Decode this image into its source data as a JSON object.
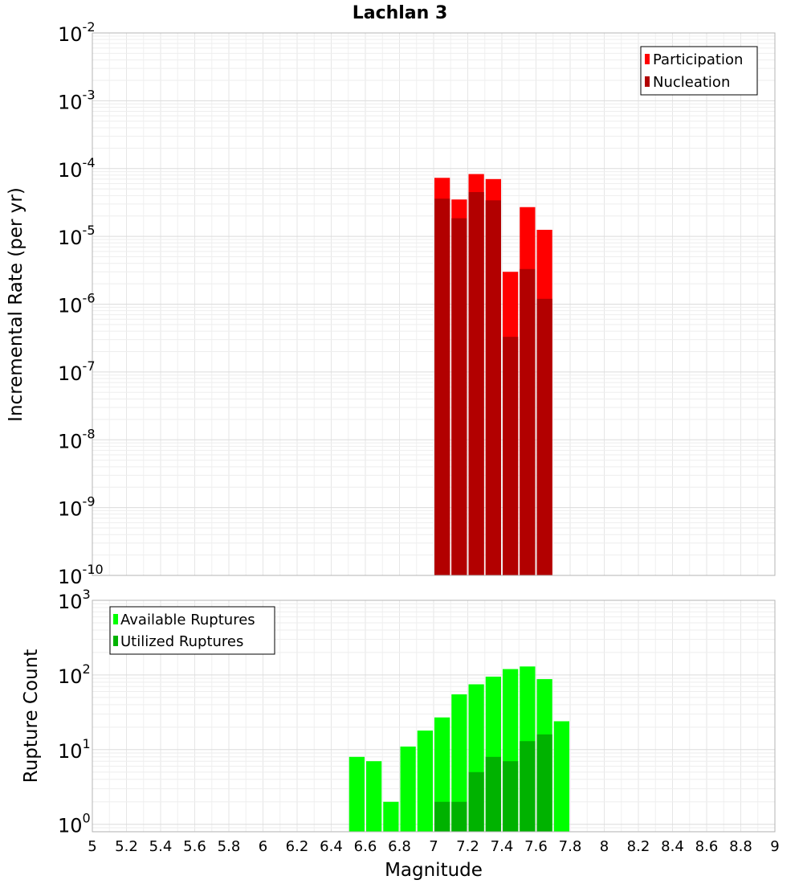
{
  "chart_data": [
    {
      "type": "bar",
      "title": "Lachlan 3",
      "xlabel": "Magnitude",
      "ylabel": "Incremental Rate (per yr)",
      "yscale": "log",
      "xlim": [
        5,
        9
      ],
      "ylim_exp": [
        -10,
        -2
      ],
      "y_tick_base": "10",
      "y_tick_exponents": [
        "-2",
        "-3",
        "-4",
        "-5",
        "-6",
        "-7",
        "-8",
        "-9",
        "-10"
      ],
      "bar_width": 0.1,
      "legend_position": "top-right",
      "series": [
        {
          "name": "Participation",
          "color": "#ff0000",
          "x": [
            7.05,
            7.15,
            7.25,
            7.35,
            7.45,
            7.55,
            7.65
          ],
          "values": [
            7.3e-05,
            3.5e-05,
            8.3e-05,
            7e-05,
            3e-06,
            2.7e-05,
            1.25e-05
          ]
        },
        {
          "name": "Nucleation",
          "color": "#b20000",
          "x": [
            7.05,
            7.15,
            7.25,
            7.35,
            7.45,
            7.55,
            7.65
          ],
          "values": [
            3.6e-05,
            1.85e-05,
            4.5e-05,
            3.4e-05,
            3.3e-07,
            3.3e-06,
            1.2e-06
          ]
        }
      ]
    },
    {
      "type": "bar",
      "xlabel": "Magnitude",
      "ylabel": "Rupture Count",
      "yscale": "log",
      "xlim": [
        5,
        9
      ],
      "ylim_exp": [
        -0.1,
        3
      ],
      "y_tick_base": "10",
      "y_tick_exponents": [
        "3",
        "2",
        "1",
        "0"
      ],
      "bar_width": 0.1,
      "legend_position": "top-left",
      "x_ticks": [
        "5",
        "5.2",
        "5.4",
        "5.6",
        "5.8",
        "6",
        "6.2",
        "6.4",
        "6.6",
        "6.8",
        "7",
        "7.2",
        "7.4",
        "7.6",
        "7.8",
        "8",
        "8.2",
        "8.4",
        "8.6",
        "8.8",
        "9"
      ],
      "series": [
        {
          "name": "Available Ruptures",
          "color": "#00ff00",
          "x": [
            6.55,
            6.65,
            6.75,
            6.85,
            6.95,
            7.05,
            7.15,
            7.25,
            7.35,
            7.45,
            7.55,
            7.65,
            7.75
          ],
          "values": [
            8,
            7,
            2,
            11,
            18,
            27,
            55,
            75,
            95,
            120,
            130,
            88,
            24
          ]
        },
        {
          "name": "Utilized Ruptures",
          "color": "#00b200",
          "x": [
            7.05,
            7.15,
            7.25,
            7.35,
            7.45,
            7.55,
            7.65
          ],
          "values": [
            2,
            2,
            5,
            8,
            7,
            13,
            16
          ]
        }
      ]
    }
  ]
}
